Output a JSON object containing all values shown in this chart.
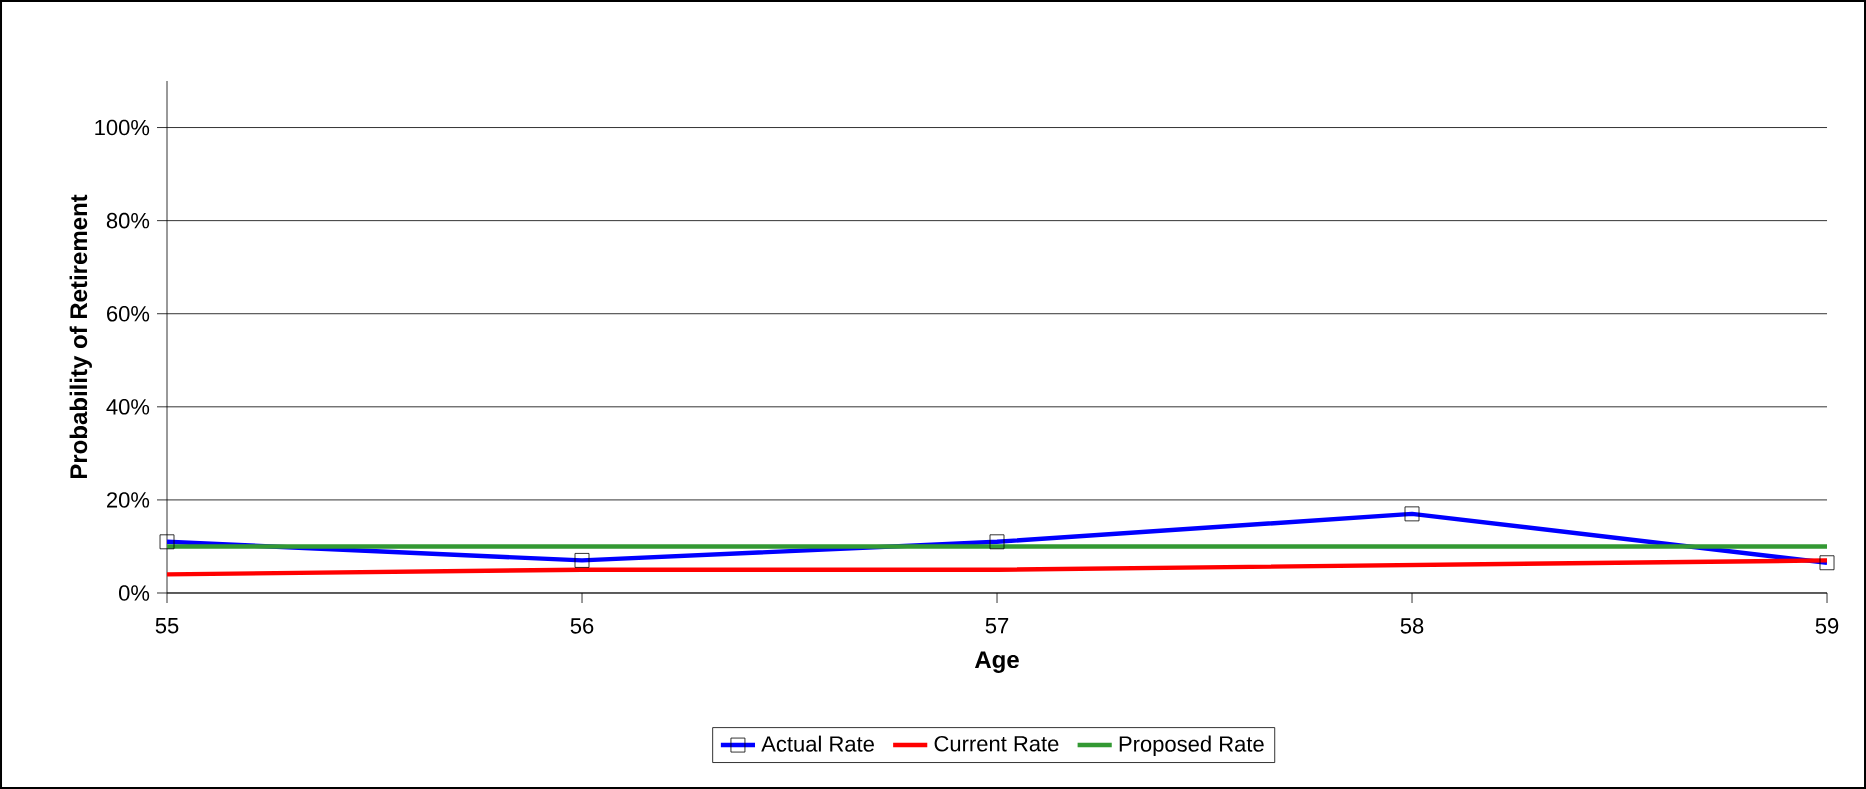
{
  "chart_data": {
    "type": "line",
    "xlabel": "Age",
    "ylabel": "Probability of Retirement",
    "x": [
      55,
      56,
      57,
      58,
      59
    ],
    "series": [
      {
        "name": "Actual Rate",
        "color": "#0000ff",
        "values": [
          11,
          7,
          11,
          17,
          6.5
        ],
        "marker": "square"
      },
      {
        "name": "Current Rate",
        "color": "#ff0000",
        "values": [
          4,
          5,
          5,
          6,
          7
        ],
        "marker": "none"
      },
      {
        "name": "Proposed Rate",
        "color": "#339933",
        "values": [
          10,
          10,
          10,
          10,
          10
        ],
        "marker": "none"
      }
    ],
    "xlim": [
      55,
      59
    ],
    "xticks": [
      55,
      56,
      57,
      58,
      59
    ],
    "ylim": [
      0,
      110
    ],
    "yticks": [
      {
        "value": 0,
        "label": "0%"
      },
      {
        "value": 20,
        "label": "20%"
      },
      {
        "value": 40,
        "label": "40%"
      },
      {
        "value": 60,
        "label": "60%"
      },
      {
        "value": 80,
        "label": "80%"
      },
      {
        "value": 100,
        "label": "100%"
      }
    ],
    "grid": "y",
    "legend": "bottom",
    "line_style": "solid"
  }
}
